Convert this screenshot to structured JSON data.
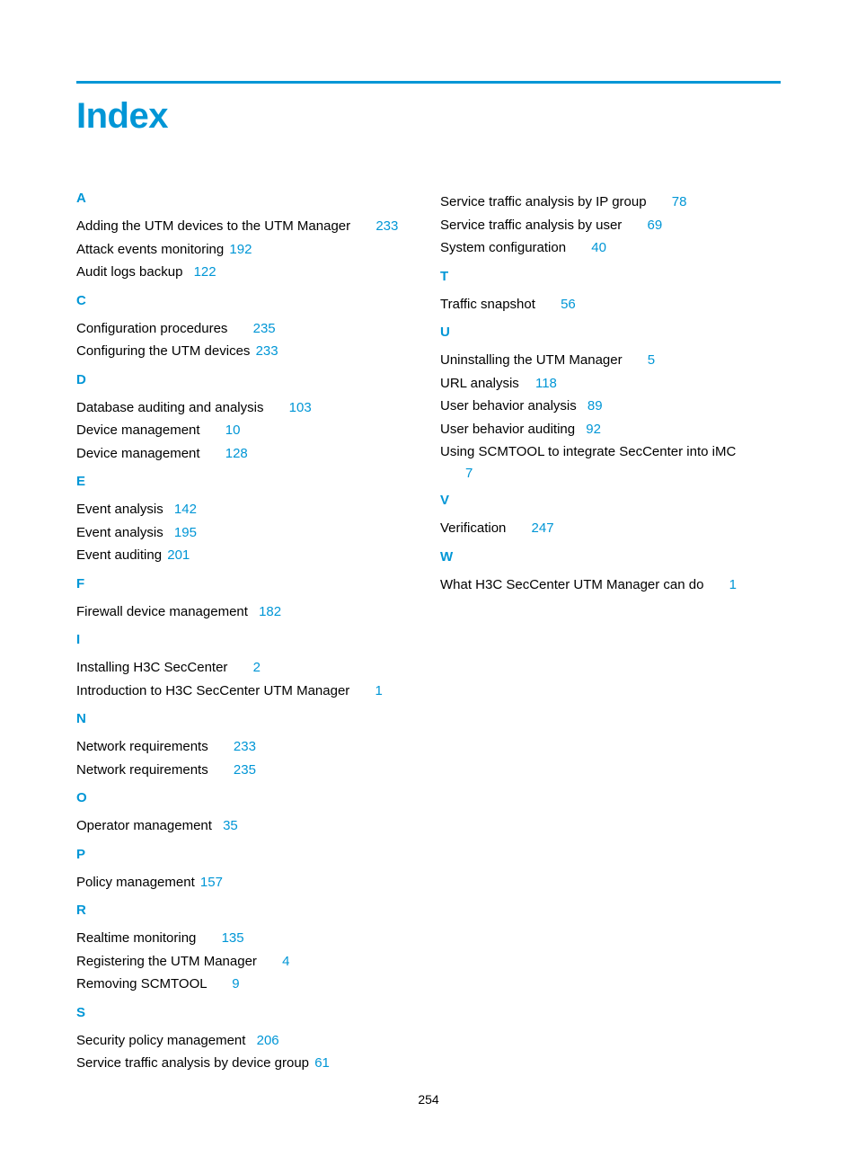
{
  "title": "Index",
  "pageNumber": "254",
  "colors": {
    "accent": "#0096d6",
    "text": "#000000",
    "background": "#ffffff"
  },
  "typography": {
    "title_fontsize": 40,
    "heading_fontsize": 15,
    "entry_fontsize": 15,
    "pagenum_fontsize": 14
  },
  "leftColumn": [
    {
      "kind": "heading",
      "letter": "A"
    },
    {
      "kind": "entry",
      "text": "Adding the UTM devices to the UTM Manager",
      "page": "233",
      "gap": "wide"
    },
    {
      "kind": "entry",
      "text": "Attack events monitoring",
      "page": "192",
      "gap": "tight"
    },
    {
      "kind": "entry",
      "text": "Audit logs backup",
      "page": "122",
      "gap": "narrow"
    },
    {
      "kind": "heading",
      "letter": "C"
    },
    {
      "kind": "entry",
      "text": "Configuration procedures",
      "page": "235",
      "gap": "wide"
    },
    {
      "kind": "entry",
      "text": "Configuring the UTM devices",
      "page": "233",
      "gap": "tight"
    },
    {
      "kind": "heading",
      "letter": "D"
    },
    {
      "kind": "entry",
      "text": "Database auditing and analysis",
      "page": "103",
      "gap": "wide"
    },
    {
      "kind": "entry",
      "text": "Device management",
      "page": "10",
      "gap": "wide"
    },
    {
      "kind": "entry",
      "text": "Device management",
      "page": "128",
      "gap": "wide"
    },
    {
      "kind": "heading",
      "letter": "E"
    },
    {
      "kind": "entry",
      "text": "Event analysis",
      "page": "142",
      "gap": "narrow"
    },
    {
      "kind": "entry",
      "text": "Event analysis",
      "page": "195",
      "gap": "narrow"
    },
    {
      "kind": "entry",
      "text": "Event auditing",
      "page": "201",
      "gap": "tight"
    },
    {
      "kind": "heading",
      "letter": "F"
    },
    {
      "kind": "entry",
      "text": "Firewall device management",
      "page": "182",
      "gap": "narrow"
    },
    {
      "kind": "heading",
      "letter": "I"
    },
    {
      "kind": "entry",
      "text": "Installing H3C SecCenter",
      "page": "2",
      "gap": "wide"
    },
    {
      "kind": "entry",
      "text": "Introduction to H3C SecCenter UTM Manager",
      "page": "1",
      "gap": "wide"
    },
    {
      "kind": "heading",
      "letter": "N"
    },
    {
      "kind": "entry",
      "text": "Network requirements",
      "page": "233",
      "gap": "wide"
    },
    {
      "kind": "entry",
      "text": "Network requirements",
      "page": "235",
      "gap": "wide"
    },
    {
      "kind": "heading",
      "letter": "O"
    },
    {
      "kind": "entry",
      "text": "Operator management",
      "page": "35",
      "gap": "narrow"
    },
    {
      "kind": "heading",
      "letter": "P"
    },
    {
      "kind": "entry",
      "text": "Policy management",
      "page": "157",
      "gap": "tight"
    },
    {
      "kind": "heading",
      "letter": "R"
    },
    {
      "kind": "entry",
      "text": "Realtime monitoring",
      "page": "135",
      "gap": "wide"
    },
    {
      "kind": "entry",
      "text": "Registering the UTM Manager",
      "page": "4",
      "gap": "wide"
    },
    {
      "kind": "entry",
      "text": "Removing SCMTOOL",
      "page": "9",
      "gap": "wide"
    },
    {
      "kind": "heading",
      "letter": "S"
    },
    {
      "kind": "entry",
      "text": "Security policy management",
      "page": "206",
      "gap": "narrow"
    },
    {
      "kind": "entry",
      "text": "Service traffic analysis by device group",
      "page": "61",
      "gap": "tight"
    }
  ],
  "rightColumn": [
    {
      "kind": "entry",
      "text": "Service traffic analysis by IP group",
      "page": "78",
      "gap": "wide"
    },
    {
      "kind": "entry",
      "text": "Service traffic analysis by user",
      "page": "69",
      "gap": "wide"
    },
    {
      "kind": "entry",
      "text": "System configuration",
      "page": "40",
      "gap": "wide"
    },
    {
      "kind": "heading",
      "letter": "T"
    },
    {
      "kind": "entry",
      "text": "Traffic snapshot",
      "page": "56",
      "gap": "wide"
    },
    {
      "kind": "heading",
      "letter": "U"
    },
    {
      "kind": "entry",
      "text": "Uninstalling the UTM Manager",
      "page": "5",
      "gap": "wide"
    },
    {
      "kind": "entry",
      "text": "URL analysis",
      "page": "118",
      "gap": "med"
    },
    {
      "kind": "entry",
      "text": "User behavior analysis",
      "page": "89",
      "gap": "narrow"
    },
    {
      "kind": "entry",
      "text": "User behavior auditing",
      "page": "92",
      "gap": "narrow"
    },
    {
      "kind": "entry-wrap",
      "text": "Using SCMTOOL to integrate SecCenter into iMC",
      "page": "7"
    },
    {
      "kind": "heading",
      "letter": "V"
    },
    {
      "kind": "entry",
      "text": "Verification",
      "page": "247",
      "gap": "wide"
    },
    {
      "kind": "heading",
      "letter": "W"
    },
    {
      "kind": "entry",
      "text": "What H3C SecCenter UTM Manager can do",
      "page": "1",
      "gap": "wide"
    }
  ]
}
